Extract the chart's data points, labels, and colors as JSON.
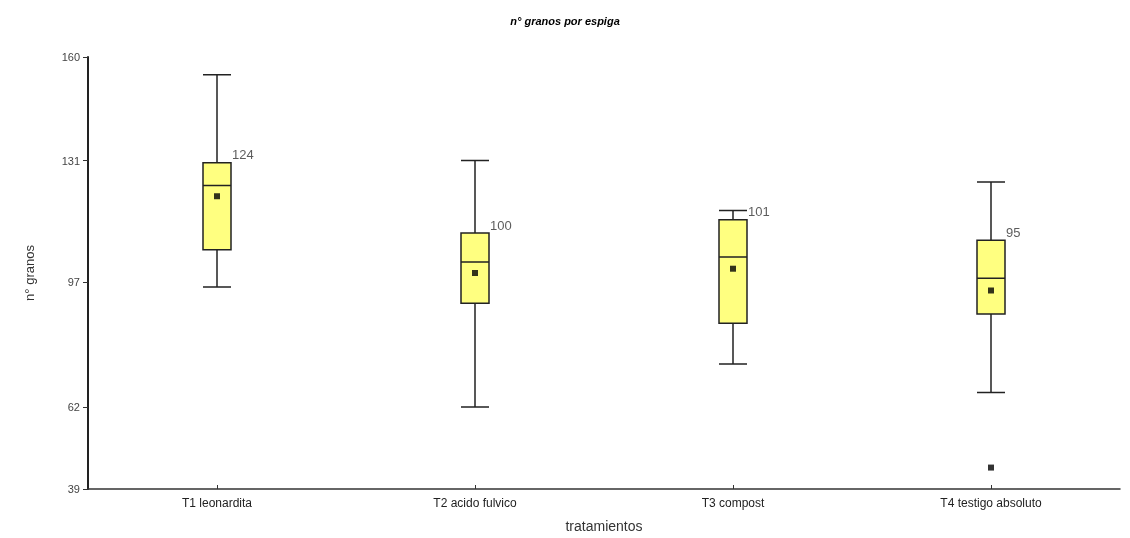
{
  "chart_data": {
    "type": "box",
    "title": "n° granos por espiga",
    "xlabel": "tratamientos",
    "ylabel": "n° granos",
    "categories": [
      "T1 leonardita",
      "T2 acido fulvico",
      "T3 compost",
      "T4 testigo absoluto"
    ],
    "color": "#ffff80",
    "boxes": [
      {
        "low": 95.6,
        "q1": 106,
        "median": 124,
        "q3": 130.4,
        "high": 155,
        "mean": 121
      },
      {
        "low": 62,
        "q1": 91,
        "median": 102.6,
        "q3": 110.7,
        "high": 131,
        "mean": 99.5
      },
      {
        "low": 74,
        "q1": 85.4,
        "median": 104,
        "q3": 114.4,
        "high": 117,
        "mean": 100.7
      },
      {
        "low": 66,
        "q1": 88,
        "median": 98,
        "q3": 108.7,
        "high": 125,
        "mean": 94.6,
        "outliers": [
          45
        ]
      }
    ],
    "annotations": [
      "124",
      "100",
      "101",
      "95"
    ],
    "yticks": [
      39,
      62,
      97,
      131,
      160
    ],
    "ylim": [
      39,
      160
    ]
  }
}
